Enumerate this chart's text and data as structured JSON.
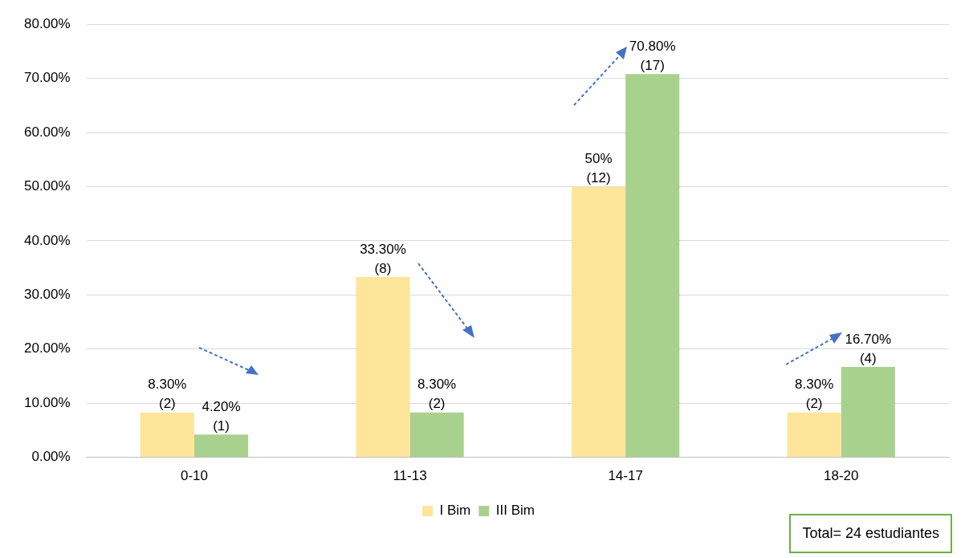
{
  "chart_data": {
    "type": "bar",
    "categories": [
      "0-10",
      "11-13",
      "14-17",
      "18-20"
    ],
    "series": [
      {
        "name": "I Bim",
        "color": "#fde59a",
        "values": [
          8.3,
          33.3,
          50,
          8.3
        ],
        "value_labels": [
          "8.30%\n(2)",
          "33.30%\n(8)",
          "50%\n(12)",
          "8.30%\n(2)"
        ]
      },
      {
        "name": "III Bim",
        "color": "#a9d18e",
        "values": [
          4.2,
          8.3,
          70.8,
          16.7
        ],
        "value_labels": [
          "4.20%\n(1)",
          "8.30%\n(2)",
          "70.80%\n(17)",
          "16.70%\n(4)"
        ]
      }
    ],
    "ylim": [
      0,
      80
    ],
    "yticks": [
      {
        "value": 0,
        "label": "0.00%"
      },
      {
        "value": 10,
        "label": "10.00%"
      },
      {
        "value": 20,
        "label": "20.00%"
      },
      {
        "value": 30,
        "label": "30.00%"
      },
      {
        "value": 40,
        "label": "40.00%"
      },
      {
        "value": 50,
        "label": "50.00%"
      },
      {
        "value": 60,
        "label": "60.00%"
      },
      {
        "value": 70,
        "label": "70.00%"
      },
      {
        "value": 80,
        "label": "80.00%"
      }
    ],
    "grid": "y",
    "legend": "bottom",
    "annotations": [
      "Total= 24 estudiantes"
    ]
  }
}
